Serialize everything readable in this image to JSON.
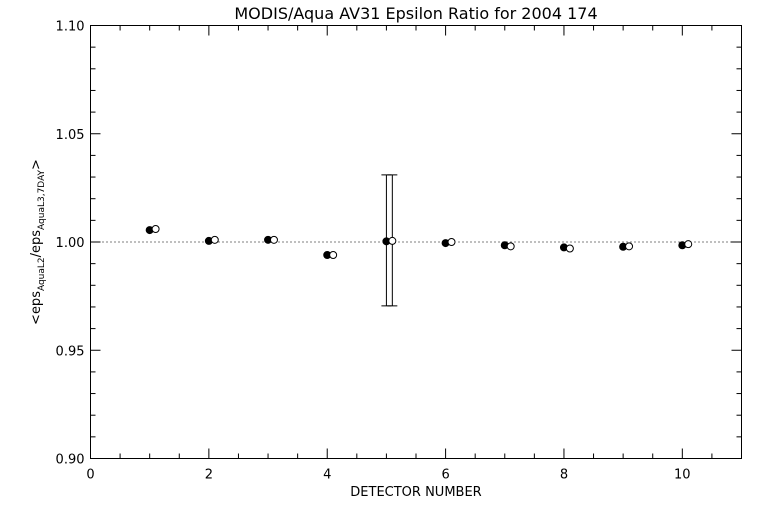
{
  "chart_data": {
    "type": "scatter",
    "title": "MODIS/Aqua AV31 Epsilon Ratio for 2004 174",
    "xlabel": "DETECTOR NUMBER",
    "ylabel": {
      "prefix": "<eps",
      "sub1": "AquaL2",
      "middle": "/eps",
      "sub2": "AquaL3,7DAY",
      "suffix": ">"
    },
    "xlim": [
      0,
      11
    ],
    "ylim": [
      0.9,
      1.1
    ],
    "x_ticks": [
      0,
      2,
      4,
      6,
      8,
      10
    ],
    "x_tick_labels": [
      "0",
      "2",
      "4",
      "6",
      "8",
      "10"
    ],
    "y_ticks": [
      0.9,
      0.95,
      1.0,
      1.05,
      1.1
    ],
    "y_tick_labels": [
      "0.90",
      "0.95",
      "1.00",
      "1.05",
      "1.10"
    ],
    "reference_line": 1.0,
    "series": [
      {
        "marker": "filled-circle",
        "x": [
          1,
          2,
          3,
          4,
          5,
          6,
          7,
          8,
          9,
          10
        ],
        "values": [
          1.0055,
          1.0005,
          1.001,
          0.994,
          1.0003,
          0.9995,
          0.9985,
          0.9975,
          0.9978,
          0.9985
        ]
      },
      {
        "marker": "open-circle",
        "x": [
          1.1,
          2.1,
          3.1,
          4.1,
          5.1,
          6.1,
          7.1,
          8.1,
          9.1,
          10.1
        ],
        "values": [
          1.006,
          1.001,
          1.001,
          0.994,
          1.0005,
          1.0,
          0.998,
          0.997,
          0.998,
          0.999
        ]
      }
    ],
    "error_bars": [
      {
        "x": 5,
        "low": 0.9705,
        "high": 1.031
      },
      {
        "x": 5.1,
        "low": 0.9705,
        "high": 1.031
      }
    ],
    "grid": false,
    "legend": "none"
  }
}
